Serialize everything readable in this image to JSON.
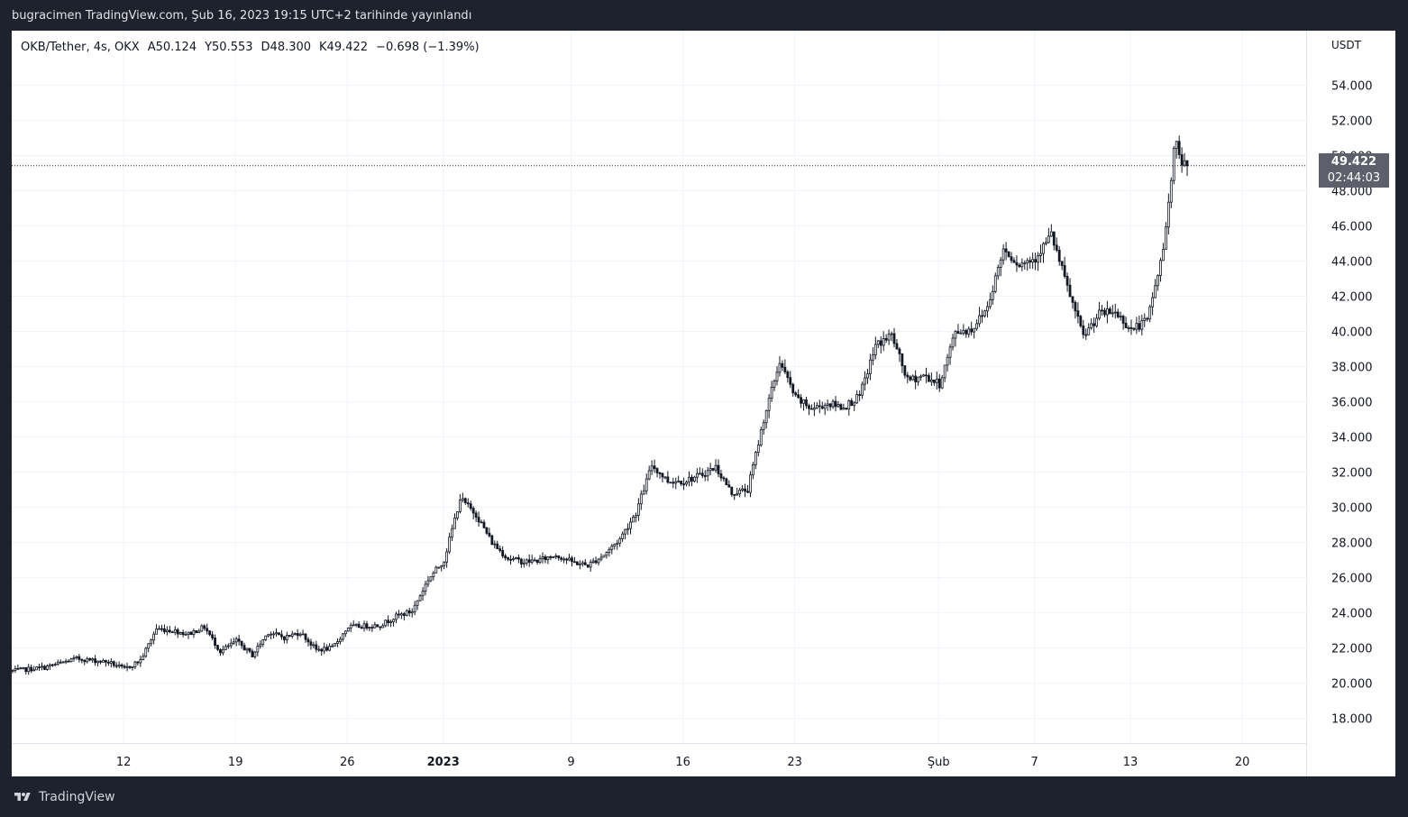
{
  "header": {
    "publisher_line": "bugracimen TradingView.com, Şub 16, 2023 19:15 UTC+2 tarihinde yayınlandı"
  },
  "legend": {
    "symbol": "OKB/Tether, 4s, OKX",
    "open": "A50.124",
    "high": "Y50.553",
    "low": "D48.300",
    "close": "K49.422",
    "change": "−0.698 (−1.39%)"
  },
  "price_axis": {
    "unit": "USDT"
  },
  "last_price": {
    "value": "49.422",
    "countdown": "02:44:03"
  },
  "footer": {
    "brand": "TradingView"
  },
  "colors": {
    "candle": "#131722",
    "background": "#ffffff",
    "frame": "#1e222d",
    "price_tag": "#5d606b",
    "grid": "#f0f3fa"
  },
  "chart_data": {
    "type": "candlestick",
    "y_unit": "USDT",
    "ylim": [
      16.6,
      57.1
    ],
    "y_ticks": [
      "18.000",
      "20.000",
      "22.000",
      "24.000",
      "26.000",
      "28.000",
      "30.000",
      "32.000",
      "34.000",
      "36.000",
      "38.000",
      "40.000",
      "42.000",
      "44.000",
      "46.000",
      "48.000",
      "50.000",
      "52.000",
      "54.000"
    ],
    "x_ticks": [
      "12",
      "19",
      "26",
      "2023",
      "9",
      "16",
      "23",
      "Şub",
      "7",
      "13",
      "20"
    ],
    "x_tick_bold": [
      false,
      false,
      false,
      true,
      false,
      false,
      false,
      false,
      false,
      false,
      false
    ],
    "xlim": [
      "2022-12-05",
      "2023-02-24"
    ],
    "x_tick_dates": [
      "2022-12-12",
      "2022-12-19",
      "2022-12-26",
      "2023-01-01",
      "2023-01-09",
      "2023-01-16",
      "2023-01-23",
      "2023-02-01",
      "2023-02-07",
      "2023-02-13",
      "2023-02-20"
    ],
    "grid": true,
    "last_price_line": 49.422,
    "series": [
      {
        "close_path": [
          [
            "2022-12-05",
            20.7
          ],
          [
            "2022-12-07",
            20.9
          ],
          [
            "2022-12-09",
            21.4
          ],
          [
            "2022-12-11",
            21.2
          ],
          [
            "2022-12-12",
            20.8
          ],
          [
            "2022-12-13",
            21.3
          ],
          [
            "2022-12-14",
            23.1
          ],
          [
            "2022-12-15",
            23.0
          ],
          [
            "2022-12-16",
            22.8
          ],
          [
            "2022-12-17",
            23.2
          ],
          [
            "2022-12-18",
            21.8
          ],
          [
            "2022-12-19",
            22.4
          ],
          [
            "2022-12-20",
            21.6
          ],
          [
            "2022-12-21",
            22.9
          ],
          [
            "2022-12-22",
            22.6
          ],
          [
            "2022-12-23",
            22.9
          ],
          [
            "2022-12-24",
            21.9
          ],
          [
            "2022-12-25",
            22.0
          ],
          [
            "2022-12-26",
            23.2
          ],
          [
            "2022-12-28",
            23.3
          ],
          [
            "2022-12-29",
            23.8
          ],
          [
            "2022-12-30",
            24.1
          ],
          [
            "2022-12-31",
            25.9
          ],
          [
            "2023-01-01",
            27.0
          ],
          [
            "2023-01-02",
            30.5
          ],
          [
            "2023-01-03",
            29.6
          ],
          [
            "2023-01-04",
            28.0
          ],
          [
            "2023-01-05",
            27.1
          ],
          [
            "2023-01-06",
            26.9
          ],
          [
            "2023-01-07",
            27.0
          ],
          [
            "2023-01-08",
            27.3
          ],
          [
            "2023-01-09",
            26.9
          ],
          [
            "2023-01-10",
            26.7
          ],
          [
            "2023-01-11",
            27.3
          ],
          [
            "2023-01-12",
            28.2
          ],
          [
            "2023-01-13",
            29.7
          ],
          [
            "2023-01-14",
            32.4
          ],
          [
            "2023-01-15",
            31.5
          ],
          [
            "2023-01-16",
            31.5
          ],
          [
            "2023-01-17",
            31.8
          ],
          [
            "2023-01-18",
            32.3
          ],
          [
            "2023-01-19",
            30.8
          ],
          [
            "2023-01-20",
            31.0
          ],
          [
            "2023-01-21",
            35.0
          ],
          [
            "2023-01-22",
            38.3
          ],
          [
            "2023-01-23",
            36.2
          ],
          [
            "2023-01-24",
            35.6
          ],
          [
            "2023-01-25",
            35.9
          ],
          [
            "2023-01-26",
            35.7
          ],
          [
            "2023-01-27",
            36.3
          ],
          [
            "2023-01-28",
            39.2
          ],
          [
            "2023-01-29",
            39.8
          ],
          [
            "2023-01-30",
            37.2
          ],
          [
            "2023-01-31",
            37.5
          ],
          [
            "2023-02-01",
            37.0
          ],
          [
            "2023-02-02",
            40.0
          ],
          [
            "2023-02-03",
            40.1
          ],
          [
            "2023-02-04",
            41.4
          ],
          [
            "2023-02-05",
            44.7
          ],
          [
            "2023-02-06",
            43.8
          ],
          [
            "2023-02-07",
            44.2
          ],
          [
            "2023-02-08",
            45.5
          ],
          [
            "2023-02-09",
            42.5
          ],
          [
            "2023-02-10",
            39.7
          ],
          [
            "2023-02-11",
            41.0
          ],
          [
            "2023-02-12",
            41.1
          ],
          [
            "2023-02-13",
            40.1
          ],
          [
            "2023-02-14",
            40.6
          ],
          [
            "2023-02-15",
            44.6
          ],
          [
            "2023-02-15T18:00",
            51.0
          ],
          [
            "2023-02-16",
            49.8
          ],
          [
            "2023-02-16T12:00",
            49.422
          ]
        ]
      }
    ]
  }
}
